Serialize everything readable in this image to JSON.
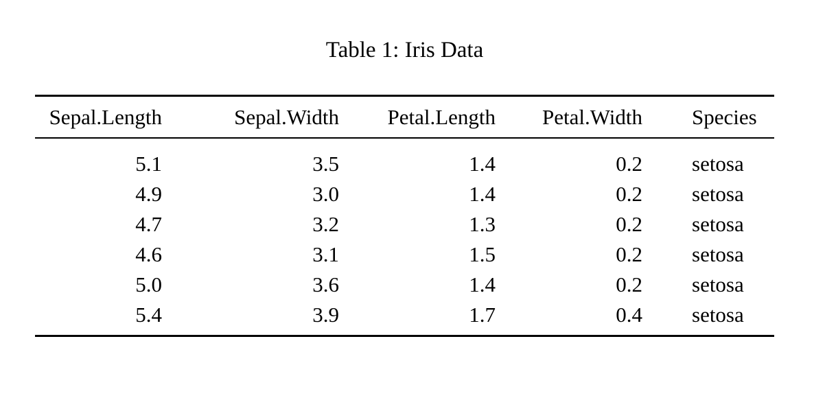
{
  "caption": "Table 1: Iris Data",
  "table": {
    "columns": [
      "Sepal.Length",
      "Sepal.Width",
      "Petal.Length",
      "Petal.Width",
      "Species"
    ],
    "column_alignments": [
      "right",
      "right",
      "right",
      "right",
      "left"
    ],
    "rows": [
      [
        "5.1",
        "3.5",
        "1.4",
        "0.2",
        "setosa"
      ],
      [
        "4.9",
        "3.0",
        "1.4",
        "0.2",
        "setosa"
      ],
      [
        "4.7",
        "3.2",
        "1.3",
        "0.2",
        "setosa"
      ],
      [
        "4.6",
        "3.1",
        "1.5",
        "0.2",
        "setosa"
      ],
      [
        "5.0",
        "3.6",
        "1.4",
        "0.2",
        "setosa"
      ],
      [
        "5.4",
        "3.9",
        "1.7",
        "0.4",
        "setosa"
      ]
    ]
  },
  "colors": {
    "background": "#ffffff",
    "text": "#000000",
    "rule": "#000000"
  }
}
